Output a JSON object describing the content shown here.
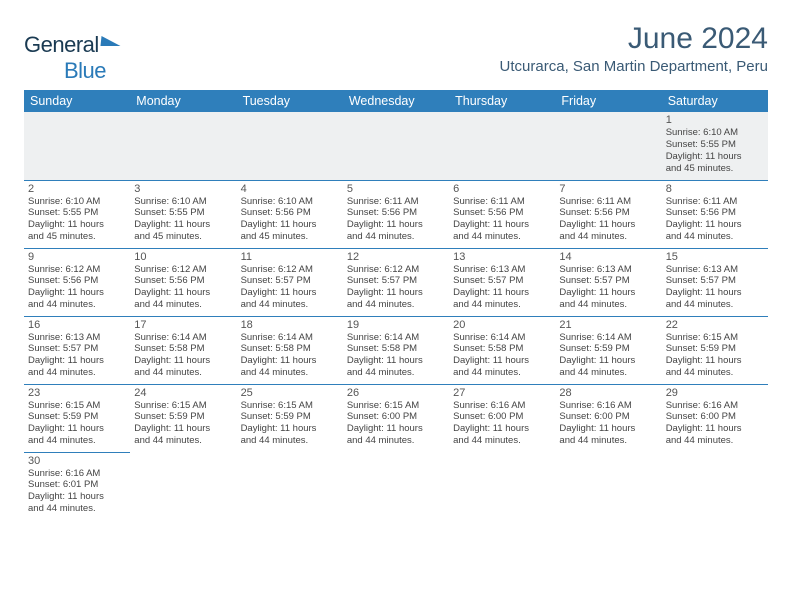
{
  "logo": {
    "part1": "General",
    "part2": "Blue"
  },
  "title": "June 2024",
  "location": "Utcurarca, San Martin Department, Peru",
  "dayHeaders": [
    "Sunday",
    "Monday",
    "Tuesday",
    "Wednesday",
    "Thursday",
    "Friday",
    "Saturday"
  ],
  "colors": {
    "headerBg": "#2f7fbb",
    "headerText": "#ffffff",
    "titleText": "#3a5a75",
    "rowDivider": "#2f7fbb",
    "emptyBg": "#eef0f1",
    "logoBlue": "#2a7ab8",
    "logoDark": "#1a3a52"
  },
  "typography": {
    "titleFontSize": 30,
    "locationFontSize": 15,
    "dayHeaderFontSize": 12.5,
    "dayNumFontSize": 11,
    "bodyFontSize": 9.5
  },
  "weeks": [
    [
      null,
      null,
      null,
      null,
      null,
      null,
      {
        "n": "1",
        "sr": "Sunrise: 6:10 AM",
        "ss": "Sunset: 5:55 PM",
        "d1": "Daylight: 11 hours",
        "d2": "and 45 minutes."
      }
    ],
    [
      {
        "n": "2",
        "sr": "Sunrise: 6:10 AM",
        "ss": "Sunset: 5:55 PM",
        "d1": "Daylight: 11 hours",
        "d2": "and 45 minutes."
      },
      {
        "n": "3",
        "sr": "Sunrise: 6:10 AM",
        "ss": "Sunset: 5:55 PM",
        "d1": "Daylight: 11 hours",
        "d2": "and 45 minutes."
      },
      {
        "n": "4",
        "sr": "Sunrise: 6:10 AM",
        "ss": "Sunset: 5:56 PM",
        "d1": "Daylight: 11 hours",
        "d2": "and 45 minutes."
      },
      {
        "n": "5",
        "sr": "Sunrise: 6:11 AM",
        "ss": "Sunset: 5:56 PM",
        "d1": "Daylight: 11 hours",
        "d2": "and 44 minutes."
      },
      {
        "n": "6",
        "sr": "Sunrise: 6:11 AM",
        "ss": "Sunset: 5:56 PM",
        "d1": "Daylight: 11 hours",
        "d2": "and 44 minutes."
      },
      {
        "n": "7",
        "sr": "Sunrise: 6:11 AM",
        "ss": "Sunset: 5:56 PM",
        "d1": "Daylight: 11 hours",
        "d2": "and 44 minutes."
      },
      {
        "n": "8",
        "sr": "Sunrise: 6:11 AM",
        "ss": "Sunset: 5:56 PM",
        "d1": "Daylight: 11 hours",
        "d2": "and 44 minutes."
      }
    ],
    [
      {
        "n": "9",
        "sr": "Sunrise: 6:12 AM",
        "ss": "Sunset: 5:56 PM",
        "d1": "Daylight: 11 hours",
        "d2": "and 44 minutes."
      },
      {
        "n": "10",
        "sr": "Sunrise: 6:12 AM",
        "ss": "Sunset: 5:56 PM",
        "d1": "Daylight: 11 hours",
        "d2": "and 44 minutes."
      },
      {
        "n": "11",
        "sr": "Sunrise: 6:12 AM",
        "ss": "Sunset: 5:57 PM",
        "d1": "Daylight: 11 hours",
        "d2": "and 44 minutes."
      },
      {
        "n": "12",
        "sr": "Sunrise: 6:12 AM",
        "ss": "Sunset: 5:57 PM",
        "d1": "Daylight: 11 hours",
        "d2": "and 44 minutes."
      },
      {
        "n": "13",
        "sr": "Sunrise: 6:13 AM",
        "ss": "Sunset: 5:57 PM",
        "d1": "Daylight: 11 hours",
        "d2": "and 44 minutes."
      },
      {
        "n": "14",
        "sr": "Sunrise: 6:13 AM",
        "ss": "Sunset: 5:57 PM",
        "d1": "Daylight: 11 hours",
        "d2": "and 44 minutes."
      },
      {
        "n": "15",
        "sr": "Sunrise: 6:13 AM",
        "ss": "Sunset: 5:57 PM",
        "d1": "Daylight: 11 hours",
        "d2": "and 44 minutes."
      }
    ],
    [
      {
        "n": "16",
        "sr": "Sunrise: 6:13 AM",
        "ss": "Sunset: 5:57 PM",
        "d1": "Daylight: 11 hours",
        "d2": "and 44 minutes."
      },
      {
        "n": "17",
        "sr": "Sunrise: 6:14 AM",
        "ss": "Sunset: 5:58 PM",
        "d1": "Daylight: 11 hours",
        "d2": "and 44 minutes."
      },
      {
        "n": "18",
        "sr": "Sunrise: 6:14 AM",
        "ss": "Sunset: 5:58 PM",
        "d1": "Daylight: 11 hours",
        "d2": "and 44 minutes."
      },
      {
        "n": "19",
        "sr": "Sunrise: 6:14 AM",
        "ss": "Sunset: 5:58 PM",
        "d1": "Daylight: 11 hours",
        "d2": "and 44 minutes."
      },
      {
        "n": "20",
        "sr": "Sunrise: 6:14 AM",
        "ss": "Sunset: 5:58 PM",
        "d1": "Daylight: 11 hours",
        "d2": "and 44 minutes."
      },
      {
        "n": "21",
        "sr": "Sunrise: 6:14 AM",
        "ss": "Sunset: 5:59 PM",
        "d1": "Daylight: 11 hours",
        "d2": "and 44 minutes."
      },
      {
        "n": "22",
        "sr": "Sunrise: 6:15 AM",
        "ss": "Sunset: 5:59 PM",
        "d1": "Daylight: 11 hours",
        "d2": "and 44 minutes."
      }
    ],
    [
      {
        "n": "23",
        "sr": "Sunrise: 6:15 AM",
        "ss": "Sunset: 5:59 PM",
        "d1": "Daylight: 11 hours",
        "d2": "and 44 minutes."
      },
      {
        "n": "24",
        "sr": "Sunrise: 6:15 AM",
        "ss": "Sunset: 5:59 PM",
        "d1": "Daylight: 11 hours",
        "d2": "and 44 minutes."
      },
      {
        "n": "25",
        "sr": "Sunrise: 6:15 AM",
        "ss": "Sunset: 5:59 PM",
        "d1": "Daylight: 11 hours",
        "d2": "and 44 minutes."
      },
      {
        "n": "26",
        "sr": "Sunrise: 6:15 AM",
        "ss": "Sunset: 6:00 PM",
        "d1": "Daylight: 11 hours",
        "d2": "and 44 minutes."
      },
      {
        "n": "27",
        "sr": "Sunrise: 6:16 AM",
        "ss": "Sunset: 6:00 PM",
        "d1": "Daylight: 11 hours",
        "d2": "and 44 minutes."
      },
      {
        "n": "28",
        "sr": "Sunrise: 6:16 AM",
        "ss": "Sunset: 6:00 PM",
        "d1": "Daylight: 11 hours",
        "d2": "and 44 minutes."
      },
      {
        "n": "29",
        "sr": "Sunrise: 6:16 AM",
        "ss": "Sunset: 6:00 PM",
        "d1": "Daylight: 11 hours",
        "d2": "and 44 minutes."
      }
    ],
    [
      {
        "n": "30",
        "sr": "Sunrise: 6:16 AM",
        "ss": "Sunset: 6:01 PM",
        "d1": "Daylight: 11 hours",
        "d2": "and 44 minutes."
      },
      null,
      null,
      null,
      null,
      null,
      null
    ]
  ]
}
